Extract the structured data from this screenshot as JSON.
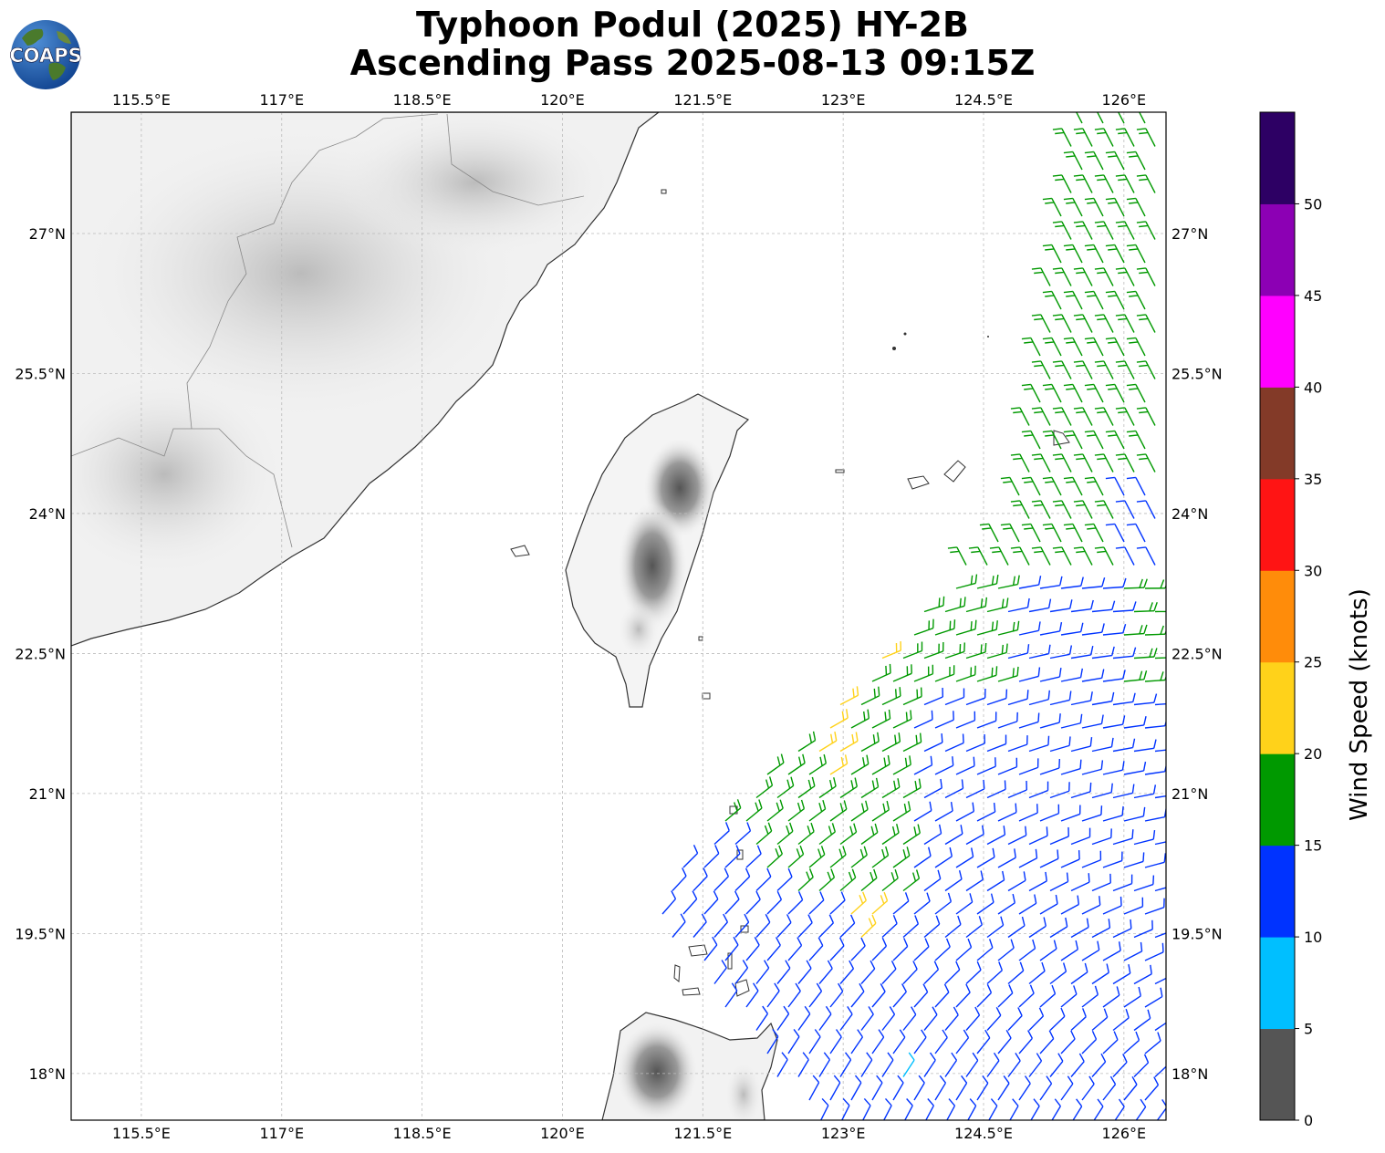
{
  "title": {
    "line1": "Typhoon Podul (2025) HY-2B",
    "line2": "Ascending Pass 2025-08-13 09:15Z"
  },
  "logo": {
    "text": "COAPS",
    "icon": "globe-logo-icon"
  },
  "map": {
    "lon_range": [
      114.75,
      126.45
    ],
    "lat_range": [
      17.5,
      28.3
    ],
    "lon_ticks": [
      115.5,
      117,
      118.5,
      120,
      121.5,
      123,
      124.5,
      126
    ],
    "lon_labels": [
      "115.5°E",
      "117°E",
      "118.5°E",
      "120°E",
      "121.5°E",
      "123°E",
      "124.5°E",
      "126°E"
    ],
    "lat_ticks": [
      27,
      25.5,
      24,
      22.5,
      21,
      19.5,
      18
    ],
    "lat_labels": [
      "27°N",
      "25.5°N",
      "24°N",
      "22.5°N",
      "21°N",
      "19.5°N",
      "18°N"
    ],
    "gridlines": true,
    "features": [
      "mainland China coast",
      "Taiwan",
      "Luzon",
      "Ryukyu islands",
      "Batanes islands"
    ]
  },
  "colorbar": {
    "label": "Wind Speed (knots)",
    "ticks": [
      "0",
      "5",
      "10",
      "15",
      "20",
      "25",
      "30",
      "35",
      "40",
      "45",
      "50"
    ],
    "colors": [
      "#555555",
      "#00bfff",
      "#0033ff",
      "#009900",
      "#ffd21a",
      "#ff8c0a",
      "#ff1414",
      "#833a28",
      "#ff00ff",
      "#8c00b4",
      "#2d0064"
    ],
    "range": [
      0,
      55
    ]
  },
  "wind_colors": {
    "lt5": "#555555",
    "5-10": "#00bfff",
    "10-15": "#0033ff",
    "15-20": "#009900",
    "20-25": "#ffd21a"
  }
}
